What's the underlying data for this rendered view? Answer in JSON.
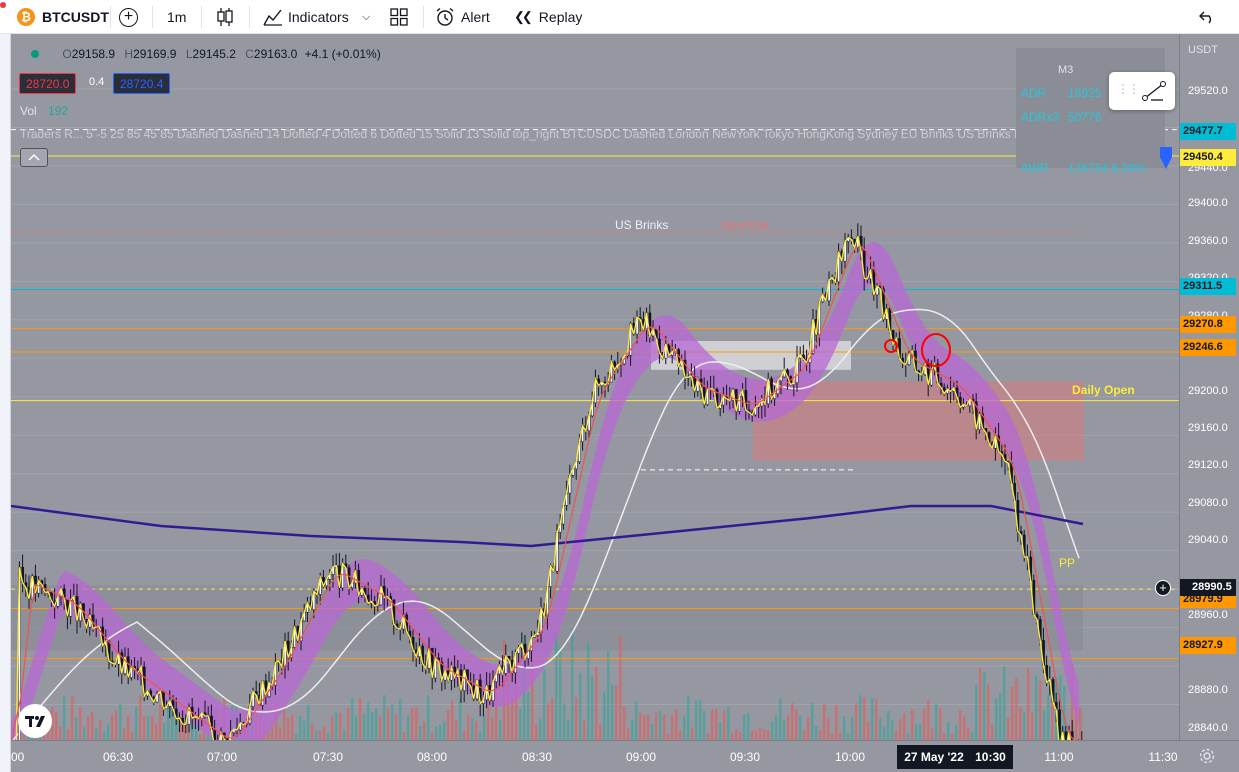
{
  "toolbar": {
    "symbol": "BTCUSDT",
    "interval": "1m",
    "indicators_label": "Indicators",
    "alert_label": "Alert",
    "replay_label": "Replay"
  },
  "legend": {
    "open": "29158.9",
    "high": "29169.9",
    "low": "29145.2",
    "close": "29163.0",
    "change": "+4.1 (+0.01%)",
    "sell_price": "28720.0",
    "spread": "0.4",
    "buy_price": "28720.4",
    "vol_label": "Vol",
    "vol_value": "192",
    "indicator_line": "Traders R... 5 -5 25 85 45 85 Dashed Dashed 14 Dotted 4 Dotted 6 Dotted 15 Solid 13 Solid top_right BTCUSDC Dashed London NewYork Tokyo HongKong Sydney EU Brinks US Brinks Frankfurt crypto ..."
  },
  "table": {
    "header": "M3",
    "row1_label": "ADR",
    "row1_value": "16925",
    "row2_label": "ADRx3",
    "row2_value": "50776",
    "row3_label": "AWR",
    "row3_value": "126764 6.29%"
  },
  "annotations": {
    "us_brinks": "US Brinks",
    "newyork": "NewYork",
    "daily_open": "Daily Open",
    "pp": "PP"
  },
  "price_scale": {
    "currency": "USDT",
    "ticks": [
      "29520.0",
      "29440.0",
      "29400.0",
      "29360.0",
      "29320.0",
      "29280.0",
      "29200.0",
      "29160.0",
      "29120.0",
      "29080.0",
      "29040.0",
      "28960.0",
      "28880.0",
      "28840.0"
    ],
    "labels": {
      "l29477": "29477.7",
      "l29450": "29450.4",
      "l29311": "29311.5",
      "l29270": "29270.8",
      "l29246": "29246.6",
      "l28990": "28990.5",
      "l28979": "28979.9",
      "l28927": "28927.9"
    }
  },
  "time_axis": {
    "ticks": [
      ":00",
      "06:30",
      "07:00",
      "07:30",
      "08:00",
      "08:30",
      "09:00",
      "09:30",
      "10:00",
      "11:00",
      "11:30"
    ],
    "crosshair_date": "27 May '22",
    "crosshair_time": "10:30"
  },
  "colors": {
    "chart_bg": "#9598a1",
    "yellow": "#ffeb3b",
    "orange": "#ff9800",
    "cyan": "#00bcd4",
    "navy": "#311b92",
    "purple_band": "#b868d6",
    "red_zone": "#e57373"
  },
  "chart_data": {
    "type": "candlestick",
    "symbol": "BTCUSDT",
    "interval": "1m",
    "x_range": [
      "06:00",
      "11:30"
    ],
    "ylim": [
      28820,
      29540
    ],
    "close_path": [
      [
        "06:00",
        29010
      ],
      [
        "06:15",
        28985
      ],
      [
        "06:30",
        28920
      ],
      [
        "06:45",
        28880
      ],
      [
        "07:00",
        28840
      ],
      [
        "07:15",
        28920
      ],
      [
        "07:30",
        29020
      ],
      [
        "07:45",
        28990
      ],
      [
        "08:00",
        28920
      ],
      [
        "08:15",
        28890
      ],
      [
        "08:30",
        28960
      ],
      [
        "08:45",
        29200
      ],
      [
        "09:00",
        29280
      ],
      [
        "09:15",
        29210
      ],
      [
        "09:30",
        29190
      ],
      [
        "09:45",
        29230
      ],
      [
        "10:00",
        29370
      ],
      [
        "10:15",
        29240
      ],
      [
        "10:30",
        29210
      ],
      [
        "10:45",
        29130
      ],
      [
        "11:00",
        28840
      ]
    ],
    "horizontal_levels": [
      29450.4,
      29311.5,
      29270.8,
      29246.6,
      29200,
      28979.9,
      28927.9
    ]
  }
}
